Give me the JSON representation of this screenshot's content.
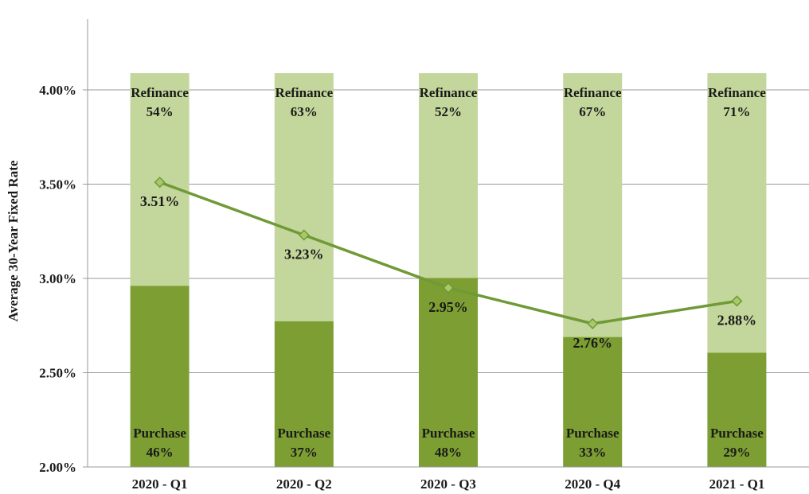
{
  "chart_data": {
    "type": "bar",
    "subtype": "stacked-100-with-line",
    "title": "",
    "xlabel": "",
    "ylabel": "Average 30-Year Fixed Rate",
    "ylim": [
      2.0,
      4.0
    ],
    "y_ticks": [
      "2.00%",
      "2.50%",
      "3.00%",
      "3.50%",
      "4.00%"
    ],
    "grid": true,
    "legend": "none",
    "categories": [
      "2020 - Q1",
      "2020 - Q2",
      "2020 - Q3",
      "2020 - Q4",
      "2021 - Q1"
    ],
    "series": [
      {
        "name": "Purchase",
        "kind": "bar-share",
        "values": [
          46,
          37,
          48,
          33,
          29
        ],
        "labels": [
          "46%",
          "37%",
          "48%",
          "33%",
          "29%"
        ],
        "color": "#7c9e32"
      },
      {
        "name": "Refinance",
        "kind": "bar-share",
        "values": [
          54,
          63,
          52,
          67,
          71
        ],
        "labels": [
          "54%",
          "63%",
          "52%",
          "67%",
          "71%"
        ],
        "color": "#c3d69b"
      },
      {
        "kind": "line",
        "values": [
          3.51,
          3.23,
          2.95,
          2.76,
          2.88
        ],
        "labels": [
          "3.51%",
          "3.23%",
          "2.95%",
          "2.76%",
          "2.88%"
        ],
        "color": "#6f9a36",
        "marker_color": "#a9c86a"
      }
    ]
  }
}
